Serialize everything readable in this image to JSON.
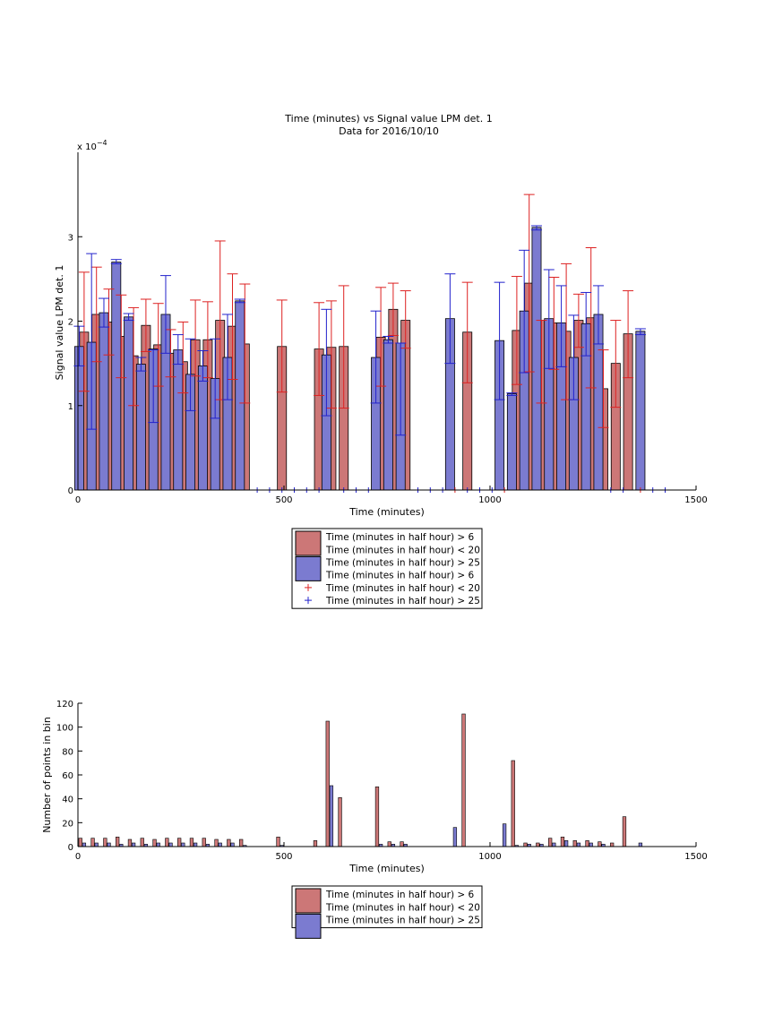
{
  "colors": {
    "red_bar": "#cc7777",
    "blue_bar": "#7b7bd0",
    "red_err": "#dd2222",
    "blue_err": "#2222cc",
    "axis": "#000000"
  },
  "chart_data": [
    {
      "type": "bar",
      "title": "Time (minutes) vs Signal value LPM det. 1",
      "subtitle": "Data for 2016/10/10",
      "xlabel": "Time (minutes)",
      "ylabel": "Signal value LPM det. 1",
      "exponent_label": "x 10",
      "exponent": "−4",
      "xlim": [
        0,
        1500
      ],
      "ylim": [
        0,
        0.0004
      ],
      "xticks": [
        0,
        500,
        1000,
        1500
      ],
      "yticks": [
        0,
        0.0001,
        0.0002,
        0.0003
      ],
      "ytick_labels": [
        "0",
        "1",
        "2",
        "3"
      ],
      "bar_width": 22,
      "legend_location": "below plot",
      "legend": [
        {
          "kind": "patch",
          "color": "#cc7777",
          "label": "Time (minutes in half hour) > 6"
        },
        {
          "kind": "text",
          "label": "Time (minutes in half hour) < 20"
        },
        {
          "kind": "patch",
          "color": "#7b7bd0",
          "label": "Time (minutes in half hour) > 25"
        },
        {
          "kind": "text",
          "label": "Time (minutes in half hour) > 6"
        },
        {
          "kind": "marker",
          "color": "#dd2222",
          "label": "Time (minutes in half hour) < 20"
        },
        {
          "kind": "marker",
          "color": "#2222cc",
          "label": "Time (minutes in half hour) > 25"
        }
      ],
      "series": [
        {
          "name": "Time (minutes in half hour) > 6 Time (minutes in half hour) < 20",
          "color": "#cc7777",
          "err_color": "#dd2222",
          "points": [
            {
              "x": 15,
              "y": 0.000187,
              "lo": 0.000117,
              "hi": 0.000258
            },
            {
              "x": 45,
              "y": 0.000208,
              "lo": 0.000152,
              "hi": 0.000264
            },
            {
              "x": 75,
              "y": 0.000199,
              "lo": 0.00016,
              "hi": 0.000238
            },
            {
              "x": 105,
              "y": 0.000182,
              "lo": 0.000133,
              "hi": 0.000231
            },
            {
              "x": 135,
              "y": 0.000159,
              "lo": 0.0001,
              "hi": 0.000216
            },
            {
              "x": 165,
              "y": 0.000195,
              "lo": 0.000164,
              "hi": 0.000226
            },
            {
              "x": 195,
              "y": 0.000172,
              "lo": 0.000123,
              "hi": 0.000221
            },
            {
              "x": 225,
              "y": 0.000162,
              "lo": 0.000134,
              "hi": 0.00019
            },
            {
              "x": 255,
              "y": 0.000152,
              "lo": 0.000115,
              "hi": 0.000199
            },
            {
              "x": 285,
              "y": 0.000178,
              "lo": 0.000135,
              "hi": 0.000225
            },
            {
              "x": 315,
              "y": 0.000178,
              "lo": 0.000133,
              "hi": 0.000223
            },
            {
              "x": 345,
              "y": 0.000201,
              "lo": 0.000107,
              "hi": 0.000295
            },
            {
              "x": 375,
              "y": 0.000194,
              "lo": 0.000131,
              "hi": 0.000256
            },
            {
              "x": 405,
              "y": 0.000173,
              "lo": 0.000103,
              "hi": 0.000244
            },
            {
              "x": 495,
              "y": 0.00017,
              "lo": 0.000116,
              "hi": 0.000225
            },
            {
              "x": 585,
              "y": 0.000167,
              "lo": 0.000112,
              "hi": 0.000222
            },
            {
              "x": 615,
              "y": 0.000169,
              "lo": 9.7e-05,
              "hi": 0.000224
            },
            {
              "x": 645,
              "y": 0.00017,
              "lo": 9.7e-05,
              "hi": 0.000242
            },
            {
              "x": 735,
              "y": 0.000181,
              "lo": 0.000123,
              "hi": 0.00024
            },
            {
              "x": 765,
              "y": 0.000214,
              "lo": 0.000183,
              "hi": 0.000245
            },
            {
              "x": 795,
              "y": 0.000201,
              "lo": 0.000168,
              "hi": 0.000236
            },
            {
              "x": 945,
              "y": 0.000187,
              "lo": 0.000127,
              "hi": 0.000246
            },
            {
              "x": 1065,
              "y": 0.000189,
              "lo": 0.000125,
              "hi": 0.000253
            },
            {
              "x": 1095,
              "y": 0.000245,
              "lo": 0.00014,
              "hi": 0.00035
            },
            {
              "x": 1125,
              "y": 0.000201,
              "lo": 0.000103,
              "hi": 0.000201
            },
            {
              "x": 1155,
              "y": 0.000198,
              "lo": 0.000143,
              "hi": 0.000252
            },
            {
              "x": 1185,
              "y": 0.000188,
              "lo": 0.000107,
              "hi": 0.000268
            },
            {
              "x": 1215,
              "y": 0.000201,
              "lo": 0.000169,
              "hi": 0.000232
            },
            {
              "x": 1245,
              "y": 0.000204,
              "lo": 0.000121,
              "hi": 0.000287
            },
            {
              "x": 1275,
              "y": 0.00012,
              "lo": 7.4e-05,
              "hi": 0.000166
            },
            {
              "x": 1305,
              "y": 0.00015,
              "lo": 9.8e-05,
              "hi": 0.000201
            },
            {
              "x": 1335,
              "y": 0.000185,
              "lo": 0.000133,
              "hi": 0.000236
            }
          ]
        },
        {
          "name": "Time (minutes in half hour) > 25",
          "color": "#7b7bd0",
          "err_color": "#2222cc",
          "points": [
            {
              "x": 3,
              "y": 0.00017,
              "lo": 0.000147,
              "hi": 0.000194
            },
            {
              "x": 33,
              "y": 0.000175,
              "lo": 7.2e-05,
              "hi": 0.00028
            },
            {
              "x": 63,
              "y": 0.00021,
              "lo": 0.000193,
              "hi": 0.000227
            },
            {
              "x": 93,
              "y": 0.00027,
              "lo": 0.000268,
              "hi": 0.000273
            },
            {
              "x": 123,
              "y": 0.000205,
              "lo": 0.000201,
              "hi": 0.000209
            },
            {
              "x": 153,
              "y": 0.000149,
              "lo": 0.000141,
              "hi": 0.000157
            },
            {
              "x": 183,
              "y": 0.000167,
              "lo": 8e-05,
              "hi": 0.000166
            },
            {
              "x": 213,
              "y": 0.000208,
              "lo": 0.000162,
              "hi": 0.000254
            },
            {
              "x": 243,
              "y": 0.000166,
              "lo": 0.000149,
              "hi": 0.000184
            },
            {
              "x": 273,
              "y": 0.000137,
              "lo": 9.4e-05,
              "hi": 0.000179
            },
            {
              "x": 303,
              "y": 0.000147,
              "lo": 0.000129,
              "hi": 0.000165
            },
            {
              "x": 333,
              "y": 0.000132,
              "lo": 8.5e-05,
              "hi": 0.000179
            },
            {
              "x": 363,
              "y": 0.000157,
              "lo": 0.000107,
              "hi": 0.000208
            },
            {
              "x": 393,
              "y": 0.000224,
              "lo": 0.000222,
              "hi": 0.000226
            },
            {
              "x": 603,
              "y": 0.00016,
              "lo": 8.8e-05,
              "hi": 0.000214
            },
            {
              "x": 723,
              "y": 0.000157,
              "lo": 0.000103,
              "hi": 0.000212
            },
            {
              "x": 753,
              "y": 0.000178,
              "lo": 0.000174,
              "hi": 0.000182
            },
            {
              "x": 783,
              "y": 0.000174,
              "lo": 6.5e-05,
              "hi": 0.000174
            },
            {
              "x": 903,
              "y": 0.000203,
              "lo": 0.00015,
              "hi": 0.000256
            },
            {
              "x": 1023,
              "y": 0.000177,
              "lo": 0.000107,
              "hi": 0.000246
            },
            {
              "x": 1053,
              "y": 0.000114,
              "lo": 0.000112,
              "hi": 0.000115
            },
            {
              "x": 1083,
              "y": 0.000212,
              "lo": 0.000139,
              "hi": 0.000284
            },
            {
              "x": 1113,
              "y": 0.000311,
              "lo": 0.000308,
              "hi": 0.000313
            },
            {
              "x": 1143,
              "y": 0.000203,
              "lo": 0.000144,
              "hi": 0.000261
            },
            {
              "x": 1173,
              "y": 0.000198,
              "lo": 0.000146,
              "hi": 0.000242
            },
            {
              "x": 1203,
              "y": 0.000157,
              "lo": 0.000107,
              "hi": 0.000207
            },
            {
              "x": 1233,
              "y": 0.000197,
              "lo": 0.000159,
              "hi": 0.000234
            },
            {
              "x": 1263,
              "y": 0.000208,
              "lo": 0.000173,
              "hi": 0.000242
            },
            {
              "x": 1365,
              "y": 0.000188,
              "lo": 0.000184,
              "hi": 0.000191
            }
          ]
        },
        {
          "name": "Time (minutes in half hour) > 6 Time (minutes in half hour) < 20 (markers)",
          "kind": "markers",
          "color": "#dd2222",
          "points": [
            {
              "x": 915,
              "y": 0
            },
            {
              "x": 1035,
              "y": 0
            },
            {
              "x": 1365,
              "y": 0
            }
          ]
        },
        {
          "name": "Time (minutes in half hour) > 25 (markers)",
          "kind": "markers",
          "color": "#2222cc",
          "points": [
            {
              "x": 435,
              "y": 0
            },
            {
              "x": 465,
              "y": 0
            },
            {
              "x": 495,
              "y": 0
            },
            {
              "x": 525,
              "y": 0
            },
            {
              "x": 555,
              "y": 0
            },
            {
              "x": 585,
              "y": 0
            },
            {
              "x": 645,
              "y": 0
            },
            {
              "x": 675,
              "y": 0
            },
            {
              "x": 705,
              "y": 0
            },
            {
              "x": 825,
              "y": 0
            },
            {
              "x": 855,
              "y": 0
            },
            {
              "x": 885,
              "y": 0
            },
            {
              "x": 945,
              "y": 0
            },
            {
              "x": 975,
              "y": 0
            },
            {
              "x": 1005,
              "y": 0
            },
            {
              "x": 1293,
              "y": 0
            },
            {
              "x": 1323,
              "y": 0
            },
            {
              "x": 1395,
              "y": 0
            },
            {
              "x": 1425,
              "y": 0
            }
          ]
        }
      ]
    },
    {
      "type": "bar",
      "title": "",
      "xlabel": "Time (minutes)",
      "ylabel": "Number of points in bin",
      "xlim": [
        0,
        1500
      ],
      "ylim": [
        0,
        120
      ],
      "xticks": [
        0,
        500,
        1000,
        1500
      ],
      "yticks": [
        0,
        20,
        40,
        60,
        80,
        100,
        120
      ],
      "bar_width": 8,
      "legend_location": "below plot",
      "legend": [
        {
          "kind": "patch",
          "color": "#cc7777",
          "label": "Time (minutes in half hour) > 6"
        },
        {
          "kind": "text",
          "label": "Time (minutes in half hour) < 20"
        },
        {
          "kind": "patch",
          "color": "#7b7bd0",
          "label": "Time (minutes in half hour) > 25"
        }
      ],
      "series": [
        {
          "name": "Time (minutes in half hour) > 6 Time (minutes in half hour) < 20",
          "color": "#cc7777",
          "points": [
            {
              "x": 6,
              "y": 7
            },
            {
              "x": 36,
              "y": 7
            },
            {
              "x": 66,
              "y": 7
            },
            {
              "x": 96,
              "y": 8
            },
            {
              "x": 126,
              "y": 6
            },
            {
              "x": 156,
              "y": 7
            },
            {
              "x": 186,
              "y": 6
            },
            {
              "x": 216,
              "y": 7
            },
            {
              "x": 246,
              "y": 7
            },
            {
              "x": 276,
              "y": 7
            },
            {
              "x": 306,
              "y": 7
            },
            {
              "x": 336,
              "y": 6
            },
            {
              "x": 366,
              "y": 6
            },
            {
              "x": 396,
              "y": 6
            },
            {
              "x": 486,
              "y": 8
            },
            {
              "x": 576,
              "y": 5
            },
            {
              "x": 606,
              "y": 105
            },
            {
              "x": 636,
              "y": 41
            },
            {
              "x": 726,
              "y": 50
            },
            {
              "x": 756,
              "y": 4
            },
            {
              "x": 786,
              "y": 4
            },
            {
              "x": 936,
              "y": 111
            },
            {
              "x": 1056,
              "y": 72
            },
            {
              "x": 1086,
              "y": 3
            },
            {
              "x": 1116,
              "y": 3
            },
            {
              "x": 1146,
              "y": 7
            },
            {
              "x": 1176,
              "y": 8
            },
            {
              "x": 1206,
              "y": 5
            },
            {
              "x": 1236,
              "y": 5
            },
            {
              "x": 1266,
              "y": 4
            },
            {
              "x": 1296,
              "y": 3
            },
            {
              "x": 1326,
              "y": 25
            }
          ]
        },
        {
          "name": "Time (minutes in half hour) > 25",
          "color": "#7b7bd0",
          "points": [
            {
              "x": 15,
              "y": 3
            },
            {
              "x": 45,
              "y": 3
            },
            {
              "x": 75,
              "y": 3
            },
            {
              "x": 105,
              "y": 2
            },
            {
              "x": 135,
              "y": 3
            },
            {
              "x": 165,
              "y": 2
            },
            {
              "x": 195,
              "y": 3
            },
            {
              "x": 225,
              "y": 3
            },
            {
              "x": 255,
              "y": 3
            },
            {
              "x": 285,
              "y": 3
            },
            {
              "x": 315,
              "y": 2
            },
            {
              "x": 345,
              "y": 3
            },
            {
              "x": 375,
              "y": 3
            },
            {
              "x": 405,
              "y": 1
            },
            {
              "x": 495,
              "y": 1
            },
            {
              "x": 615,
              "y": 51
            },
            {
              "x": 735,
              "y": 2
            },
            {
              "x": 765,
              "y": 2
            },
            {
              "x": 795,
              "y": 2
            },
            {
              "x": 915,
              "y": 16
            },
            {
              "x": 1035,
              "y": 19
            },
            {
              "x": 1065,
              "y": 1
            },
            {
              "x": 1095,
              "y": 2
            },
            {
              "x": 1125,
              "y": 2
            },
            {
              "x": 1155,
              "y": 3
            },
            {
              "x": 1185,
              "y": 5
            },
            {
              "x": 1215,
              "y": 3
            },
            {
              "x": 1245,
              "y": 3
            },
            {
              "x": 1275,
              "y": 2
            },
            {
              "x": 1365,
              "y": 3
            }
          ]
        }
      ]
    }
  ]
}
